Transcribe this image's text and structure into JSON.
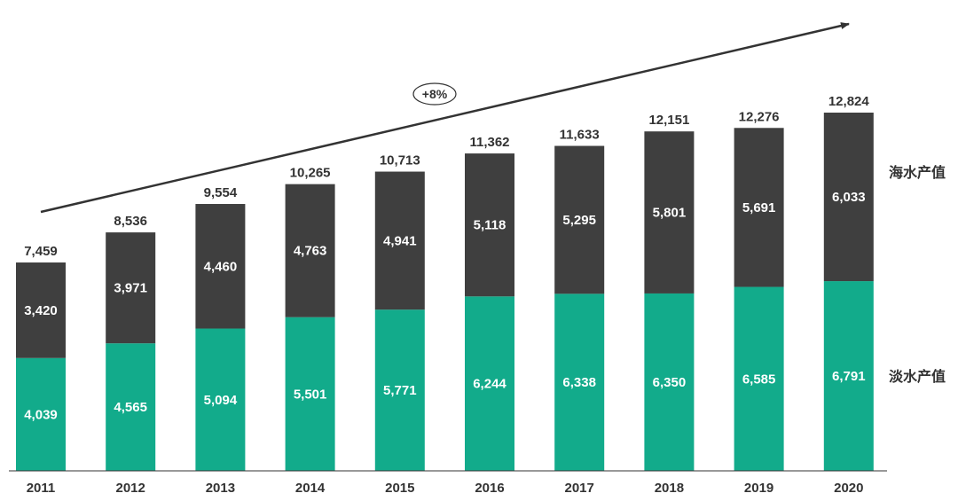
{
  "chart_data": {
    "type": "bar",
    "stacked": true,
    "categories": [
      "2011",
      "2012",
      "2013",
      "2014",
      "2015",
      "2016",
      "2017",
      "2018",
      "2019",
      "2020"
    ],
    "series": [
      {
        "name": "淡水产值",
        "color": "#12ab8b",
        "values": [
          4039,
          4565,
          5094,
          5501,
          5771,
          6244,
          6338,
          6350,
          6585,
          6791
        ],
        "labels": [
          "4,039",
          "4,565",
          "5,094",
          "5,501",
          "5,771",
          "6,244",
          "6,338",
          "6,350",
          "6,585",
          "6,791"
        ]
      },
      {
        "name": "海水产值",
        "color": "#3f3f3f",
        "values": [
          3420,
          3971,
          4460,
          4763,
          4941,
          5118,
          5295,
          5801,
          5691,
          6033
        ],
        "labels": [
          "3,420",
          "3,971",
          "4,460",
          "4,763",
          "4,941",
          "5,118",
          "5,295",
          "5,801",
          "5,691",
          "6,033"
        ]
      }
    ],
    "totals": [
      7459,
      8536,
      9554,
      10265,
      10713,
      11362,
      11633,
      12151,
      12276,
      12824
    ],
    "total_labels": [
      "7,459",
      "8,536",
      "9,554",
      "10,265",
      "10,713",
      "11,362",
      "11,633",
      "12,151",
      "12,276",
      "12,824"
    ],
    "annotation": "+8%",
    "legend_placement": "right",
    "ylim": [
      0,
      12824
    ]
  }
}
